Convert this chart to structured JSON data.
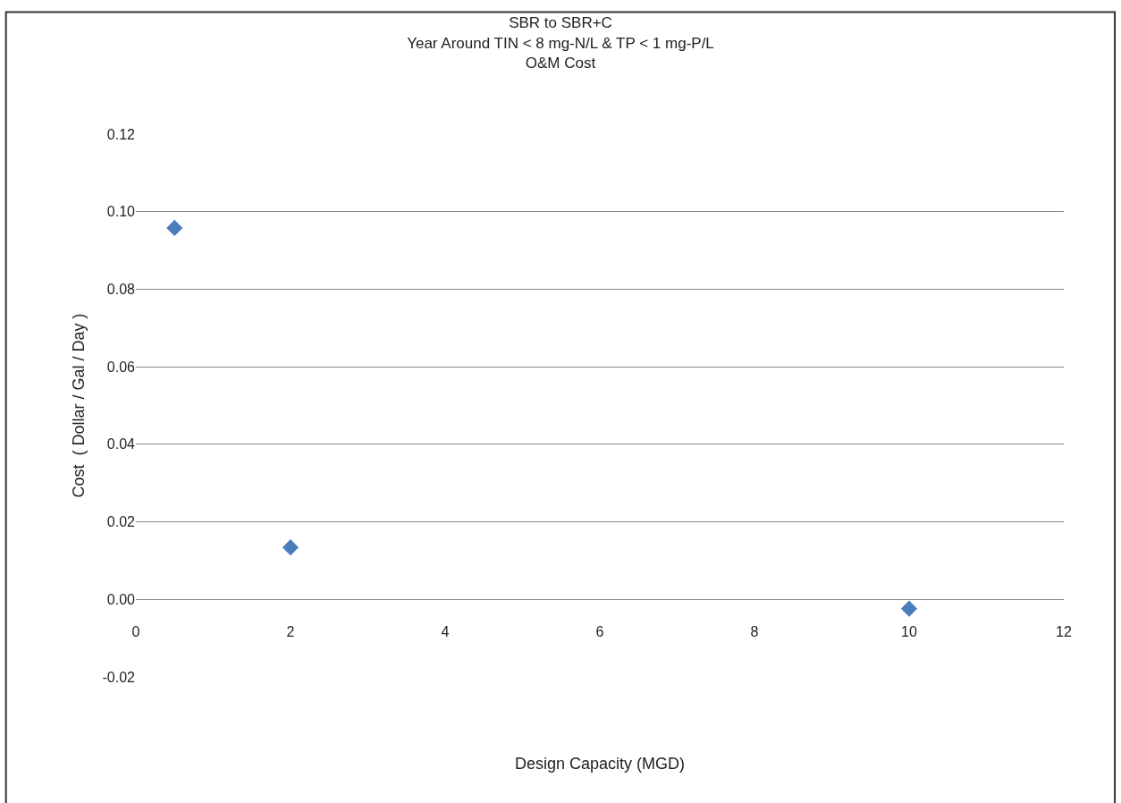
{
  "chart_data": {
    "type": "scatter",
    "title": "SBR to SBR+C\nYear Around TIN < 8 mg-N/L & TP < 1 mg-P/L\nO&M Cost",
    "xlabel": "Design Capacity (MGD)",
    "ylabel": "Cost  ( Dollar / Gal / Day )",
    "x": [
      0.5,
      2,
      10
    ],
    "series": [
      {
        "color": "#4a7ebb",
        "values": [
          0.0958,
          0.0134,
          -0.0024
        ]
      }
    ],
    "xlim": [
      0,
      12
    ],
    "xticks": [
      0,
      2,
      4,
      6,
      8,
      10,
      12
    ],
    "ylim": [
      -0.02,
      0.12
    ],
    "yticks": [
      {
        "value": -0.02,
        "label": "-0.02"
      },
      {
        "value": 0,
        "label": "0.00"
      },
      {
        "value": 0.02,
        "label": "0.02"
      },
      {
        "value": 0.04,
        "label": "0.04"
      },
      {
        "value": 0.06,
        "label": "0.06"
      },
      {
        "value": 0.08,
        "label": "0.08"
      },
      {
        "value": 0.1,
        "label": "0.10"
      },
      {
        "value": 0.12,
        "label": "0.12"
      }
    ],
    "grid": "y",
    "legend": false,
    "marker": "diamond"
  }
}
